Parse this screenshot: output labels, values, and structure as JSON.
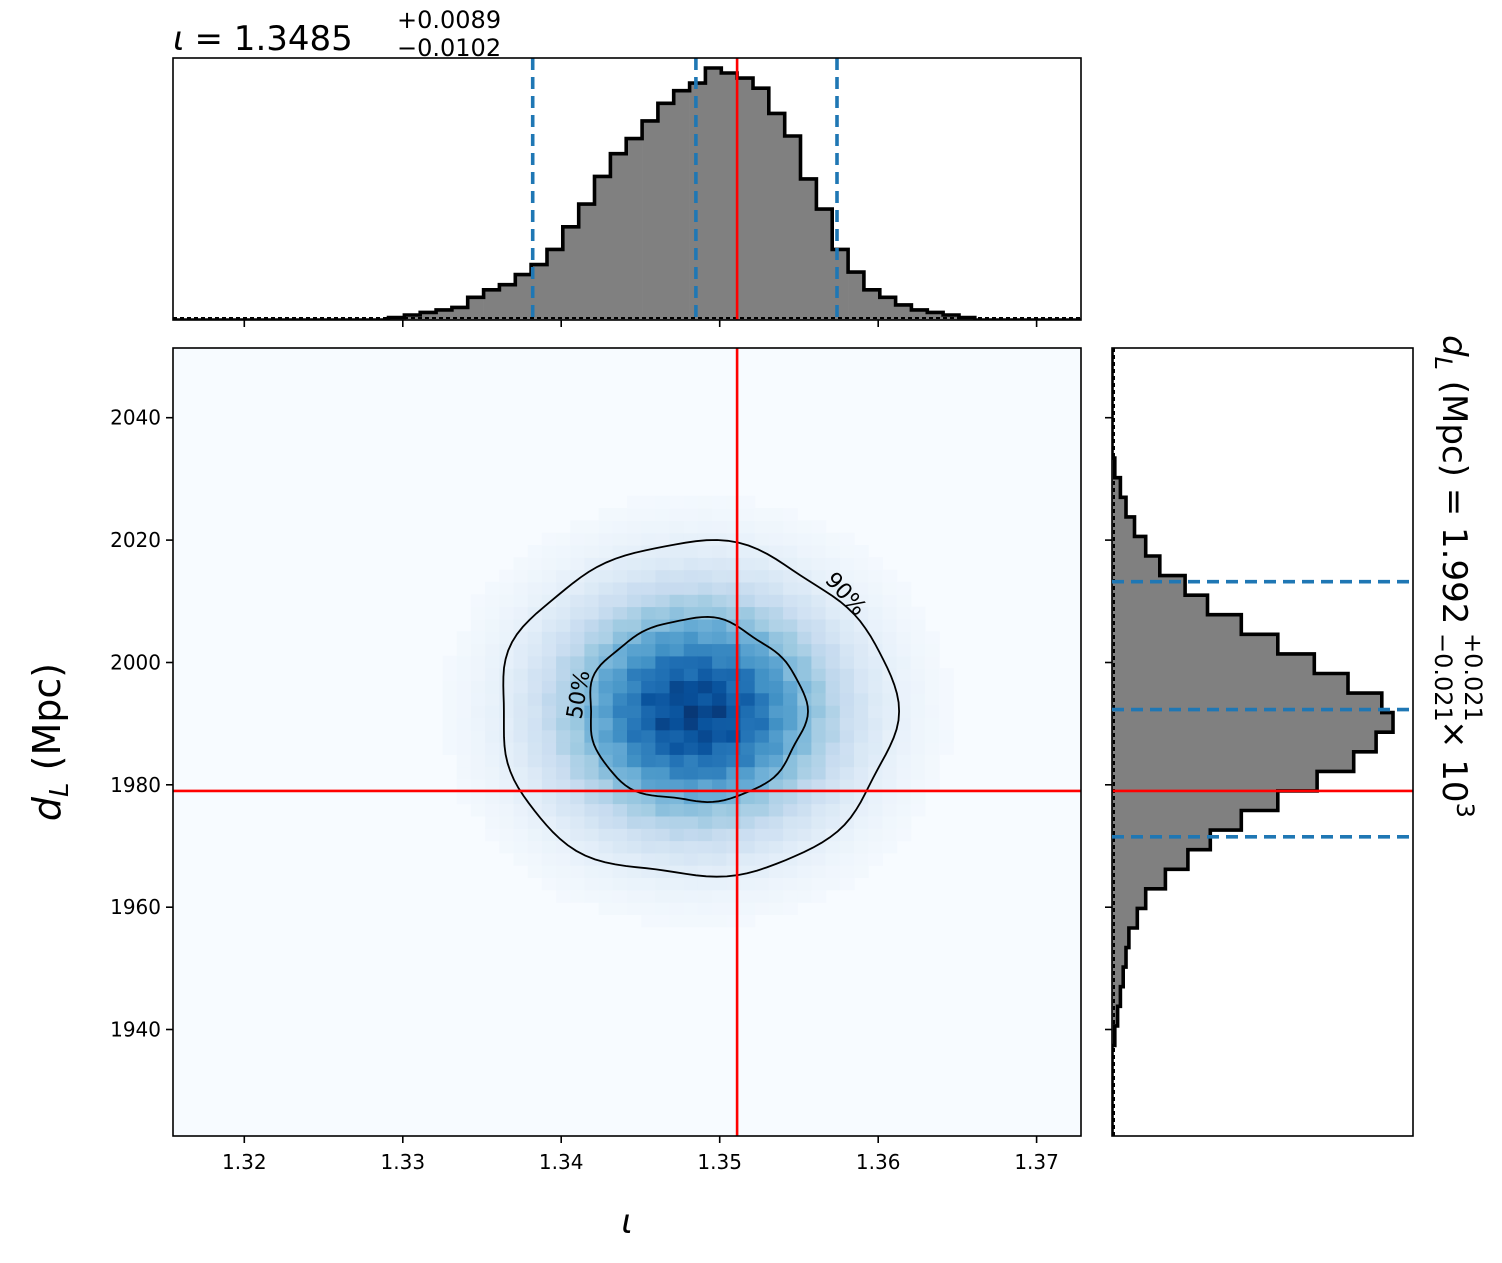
{
  "chart_data": {
    "type": "corner",
    "title": {
      "symbol": "ι",
      "value": "= 1.3485",
      "plus": "+0.0089",
      "minus": "−0.0102"
    },
    "xlabel": "ι",
    "ylabel": {
      "main": "d",
      "sub": "L",
      "rest": " (Mpc)"
    },
    "right_label": {
      "prefix_main": "d",
      "prefix_sub": "L",
      "rest": " (Mpc) = 1.992",
      "plus": "+0.021",
      "minus": "−0.021",
      "mult": "× 10",
      "exp": "3"
    },
    "xlim": [
      1.3155,
      1.3728
    ],
    "ylim": [
      1922.6,
      2051.4
    ],
    "x_ticks": [
      1.32,
      1.33,
      1.34,
      1.35,
      1.36,
      1.37
    ],
    "x_tick_labels": [
      "1.32",
      "1.33",
      "1.34",
      "1.35",
      "1.36",
      "1.37"
    ],
    "y_ticks": [
      1940,
      1960,
      1980,
      2000,
      2020,
      2040
    ],
    "y_tick_labels": [
      "1940",
      "1960",
      "1980",
      "2000",
      "2020",
      "2040"
    ],
    "truth": {
      "iota": 1.3511,
      "dL": 1979.0
    },
    "iota_quantiles": [
      1.3382,
      1.3485,
      1.3574
    ],
    "dL_quantiles": [
      1971.5,
      1992.3,
      2013.2
    ],
    "posterior_center": {
      "iota": 1.3485,
      "dL": 1992.0
    },
    "posterior_sigma": {
      "iota": 0.0058,
      "dL": 12.7
    },
    "contour_levels": [
      "50%",
      "90%"
    ],
    "iota_hist": {
      "bin_edges": [
        1.3155,
        1.3291,
        1.3301,
        1.3311,
        1.3321,
        1.3331,
        1.3341,
        1.3351,
        1.3361,
        1.3371,
        1.3381,
        1.3391,
        1.3401,
        1.3411,
        1.3421,
        1.3431,
        1.3441,
        1.3451,
        1.3461,
        1.3471,
        1.3481,
        1.3491,
        1.3501,
        1.3511,
        1.3521,
        1.3531,
        1.3541,
        1.3551,
        1.3561,
        1.3571,
        1.3581,
        1.3591,
        1.3601,
        1.3611,
        1.3621,
        1.3631,
        1.3641,
        1.3651,
        1.3661,
        1.3728
      ],
      "density": [
        0.0,
        0.01,
        0.02,
        0.03,
        0.04,
        0.05,
        0.09,
        0.12,
        0.14,
        0.18,
        0.22,
        0.28,
        0.37,
        0.46,
        0.57,
        0.66,
        0.72,
        0.79,
        0.86,
        0.91,
        0.94,
        1.0,
        0.98,
        0.96,
        0.92,
        0.82,
        0.73,
        0.56,
        0.44,
        0.28,
        0.19,
        0.12,
        0.09,
        0.06,
        0.04,
        0.03,
        0.02,
        0.01,
        0.0
      ]
    },
    "dL_hist": {
      "bin_edges": [
        1922.6,
        1937.4,
        1940.6,
        1943.8,
        1947.0,
        1950.2,
        1953.4,
        1956.6,
        1959.8,
        1963.0,
        1966.2,
        1969.4,
        1972.6,
        1975.8,
        1979.0,
        1982.2,
        1985.4,
        1988.6,
        1991.8,
        1995.0,
        1998.2,
        2001.4,
        2004.6,
        2007.8,
        2011.0,
        2014.2,
        2017.4,
        2020.6,
        2023.8,
        2027.0,
        2030.2,
        2033.4,
        2051.4
      ],
      "density": [
        0.0,
        0.01,
        0.02,
        0.03,
        0.04,
        0.05,
        0.06,
        0.09,
        0.12,
        0.19,
        0.27,
        0.35,
        0.46,
        0.59,
        0.73,
        0.86,
        0.94,
        1.0,
        0.96,
        0.84,
        0.72,
        0.59,
        0.46,
        0.34,
        0.26,
        0.17,
        0.12,
        0.08,
        0.05,
        0.03,
        0.01,
        0.0
      ]
    },
    "colors": {
      "hist_fill": "#808080",
      "hist_edge": "#000000",
      "quantile": "#1f77b4",
      "truth": "#ff0000",
      "contour": "#000000",
      "density_low": "#f7fbff",
      "density_high": "#08306b"
    }
  }
}
